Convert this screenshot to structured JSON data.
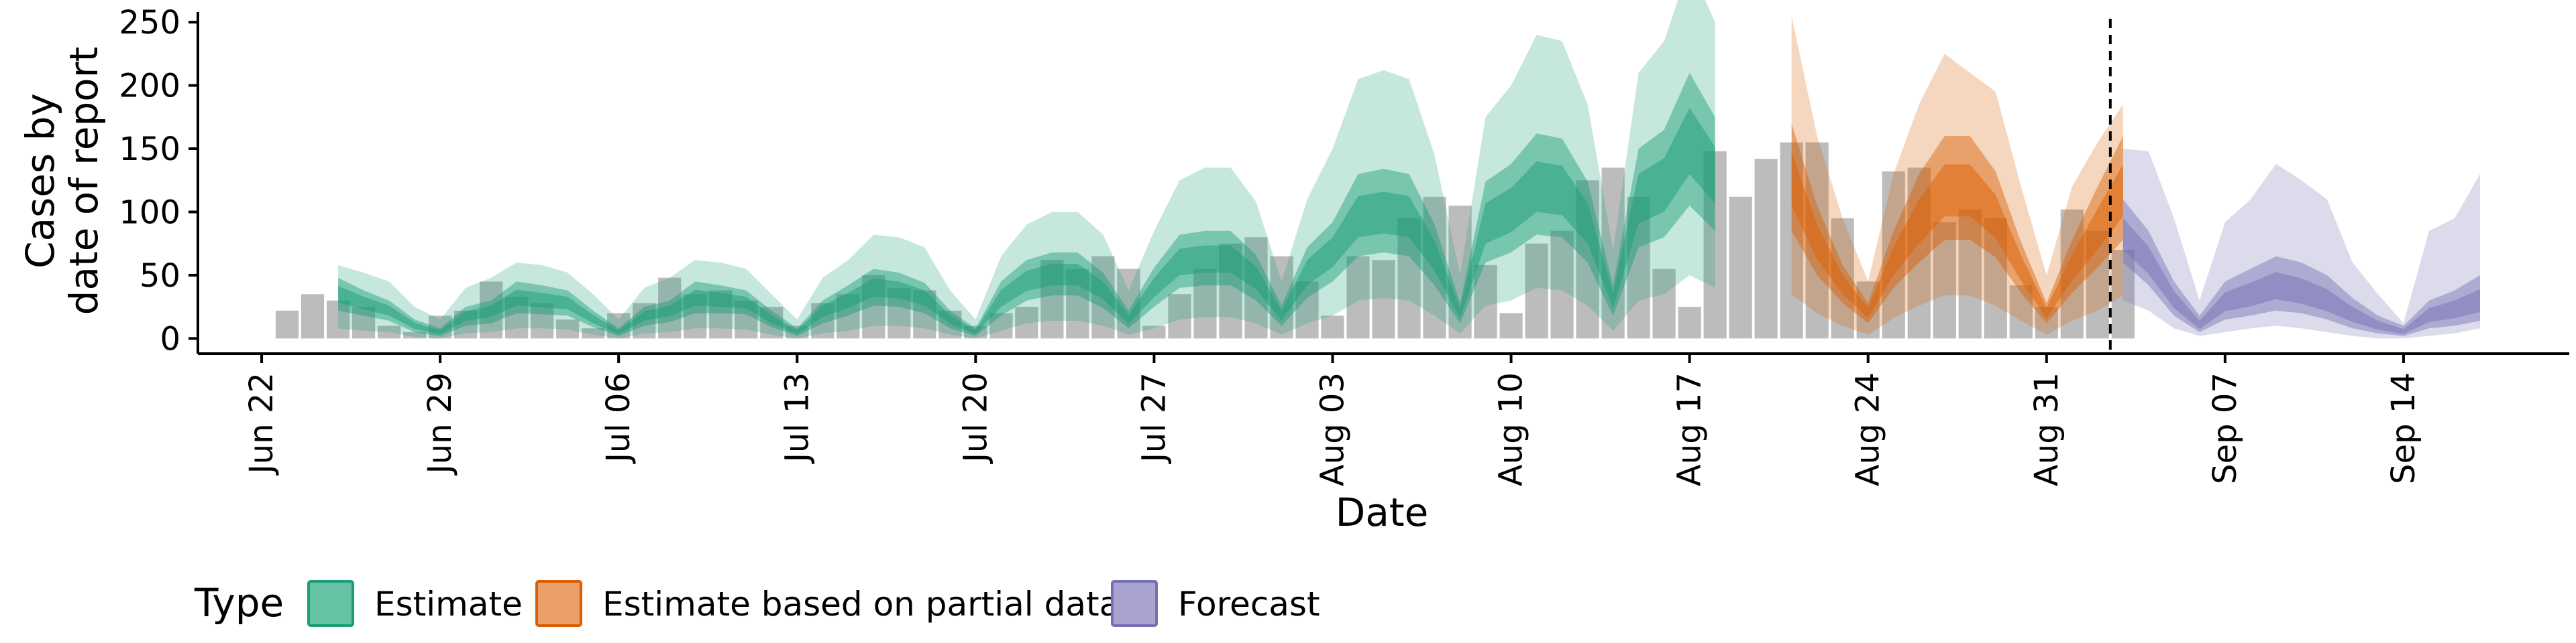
{
  "chart_data": {
    "type": "area",
    "xlabel": "Date",
    "ylabel_lines": [
      "Cases by",
      "date of report"
    ],
    "x_ticks": [
      "Jun 22",
      "Jun 29",
      "Jul 06",
      "Jul 13",
      "Jul 20",
      "Jul 27",
      "Aug 03",
      "Aug 10",
      "Aug 17",
      "Aug 24",
      "Aug 31",
      "Sep 07",
      "Sep 14"
    ],
    "x_tick_day_index": [
      0,
      7,
      14,
      21,
      28,
      35,
      42,
      49,
      56,
      63,
      70,
      77,
      84
    ],
    "x_range_day_index": [
      -2.5,
      90.5
    ],
    "y_ticks": [
      0,
      50,
      100,
      150,
      200,
      250
    ],
    "ylim": [
      -12,
      258
    ],
    "forecast_cutoff_day_index": 72.5,
    "grid": false,
    "legend": {
      "title": "Type",
      "position": "bottom",
      "items": [
        {
          "label": "Estimate",
          "fill": "#66c2a5",
          "stroke": "#1b9e77"
        },
        {
          "label": "Estimate based on partial data",
          "fill": "#eba06a",
          "stroke": "#d95f02"
        },
        {
          "label": "Forecast",
          "fill": "#a9a4cf",
          "stroke": "#7570b3"
        }
      ]
    },
    "colors": {
      "bars": "#a6a6a6",
      "estimate": "#1b9e77",
      "partial": "#d95f02",
      "forecast": "#7570b3",
      "cutoff_line": "#000000"
    },
    "reported_cases": {
      "start_day_index": 1,
      "values": [
        22,
        35,
        30,
        25,
        10,
        5,
        18,
        22,
        45,
        33,
        28,
        15,
        8,
        20,
        28,
        48,
        35,
        38,
        30,
        25,
        10,
        28,
        35,
        50,
        40,
        38,
        22,
        10,
        20,
        25,
        62,
        55,
        65,
        55,
        10,
        35,
        55,
        75,
        80,
        65,
        45,
        18,
        65,
        62,
        95,
        112,
        105,
        58,
        20,
        75,
        85,
        125,
        135,
        112,
        55,
        25,
        148,
        112,
        142,
        155,
        155,
        95,
        45,
        132,
        135,
        92,
        102,
        95,
        42,
        25,
        102,
        85,
        70
      ]
    },
    "series": [
      {
        "name": "Estimate",
        "start_day_index": 3,
        "median": [
          35,
          28,
          22,
          10,
          5,
          18,
          22,
          32,
          30,
          28,
          15,
          5,
          18,
          22,
          32,
          30,
          28,
          15,
          5,
          22,
          30,
          40,
          38,
          32,
          15,
          5,
          32,
          45,
          50,
          50,
          38,
          15,
          40,
          60,
          62,
          62,
          48,
          18,
          52,
          68,
          95,
          98,
          95,
          65,
          20,
          90,
          100,
          118,
          115,
          90,
          30,
          110,
          120,
          155,
          128
        ],
        "inner_low": [
          22,
          18,
          14,
          5,
          2,
          10,
          12,
          20,
          19,
          18,
          9,
          2,
          10,
          13,
          20,
          20,
          19,
          9,
          2,
          12,
          18,
          26,
          25,
          20,
          8,
          2,
          18,
          30,
          34,
          34,
          24,
          8,
          25,
          40,
          42,
          42,
          30,
          10,
          32,
          45,
          65,
          68,
          65,
          42,
          12,
          60,
          68,
          82,
          80,
          60,
          18,
          72,
          80,
          105,
          85
        ],
        "inner_high": [
          48,
          38,
          30,
          15,
          8,
          25,
          30,
          45,
          42,
          38,
          22,
          8,
          25,
          30,
          45,
          42,
          38,
          22,
          8,
          30,
          42,
          55,
          52,
          44,
          22,
          8,
          45,
          62,
          68,
          68,
          52,
          22,
          56,
          82,
          85,
          85,
          66,
          26,
          72,
          92,
          130,
          134,
          130,
          90,
          28,
          124,
          138,
          162,
          158,
          124,
          42,
          150,
          165,
          210,
          175
        ],
        "outer_low": [
          8,
          6,
          5,
          1,
          0,
          4,
          5,
          8,
          8,
          7,
          3,
          0,
          4,
          5,
          8,
          8,
          7,
          3,
          0,
          4,
          6,
          10,
          10,
          8,
          3,
          0,
          6,
          12,
          14,
          14,
          10,
          3,
          8,
          15,
          17,
          17,
          12,
          3,
          12,
          18,
          30,
          32,
          30,
          18,
          4,
          26,
          30,
          40,
          38,
          26,
          6,
          30,
          35,
          50,
          40
        ],
        "outer_high": [
          58,
          52,
          45,
          25,
          15,
          40,
          48,
          60,
          58,
          52,
          35,
          15,
          40,
          48,
          62,
          60,
          55,
          35,
          15,
          48,
          62,
          82,
          80,
          72,
          38,
          15,
          65,
          90,
          100,
          100,
          82,
          38,
          85,
          125,
          135,
          135,
          108,
          45,
          110,
          150,
          205,
          212,
          205,
          145,
          50,
          175,
          200,
          240,
          235,
          185,
          70,
          210,
          235,
          295,
          250
        ]
      },
      {
        "name": "Estimate based on partial data",
        "start_day_index": 60,
        "median": [
          125,
          75,
          42,
          20,
          60,
          90,
          115,
          115,
          95,
          55,
          20,
          55,
          85,
          115
        ],
        "inner_low": [
          85,
          50,
          28,
          12,
          40,
          60,
          78,
          78,
          64,
          36,
          12,
          36,
          56,
          78
        ],
        "inner_high": [
          170,
          105,
          58,
          28,
          85,
          130,
          160,
          160,
          132,
          76,
          28,
          78,
          120,
          160
        ],
        "outer_low": [
          35,
          20,
          10,
          3,
          16,
          26,
          34,
          34,
          26,
          14,
          3,
          14,
          22,
          34
        ],
        "outer_high": [
          255,
          160,
          95,
          45,
          130,
          185,
          225,
          210,
          195,
          120,
          50,
          120,
          155,
          185
        ]
      },
      {
        "name": "Forecast",
        "start_day_index": 73,
        "median": [
          80,
          60,
          30,
          10,
          28,
          33,
          40,
          35,
          28,
          18,
          10,
          5,
          18,
          22,
          28
        ],
        "inner_low": [
          60,
          42,
          18,
          5,
          15,
          18,
          22,
          20,
          15,
          8,
          4,
          2,
          8,
          10,
          14
        ],
        "inner_high": [
          110,
          85,
          45,
          18,
          45,
          55,
          65,
          60,
          50,
          32,
          18,
          10,
          30,
          38,
          50
        ],
        "outer_low": [
          30,
          22,
          8,
          2,
          5,
          8,
          10,
          8,
          5,
          2,
          0,
          0,
          2,
          4,
          8
        ],
        "outer_high": [
          150,
          148,
          95,
          30,
          92,
          110,
          138,
          125,
          110,
          60,
          35,
          12,
          85,
          95,
          130
        ]
      }
    ]
  }
}
